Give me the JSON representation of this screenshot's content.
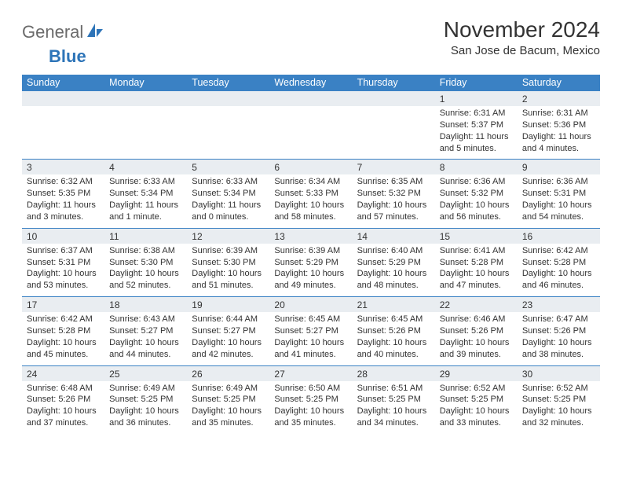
{
  "logo": {
    "text1": "General",
    "text2": "Blue"
  },
  "title": "November 2024",
  "location": "San Jose de Bacum, Mexico",
  "colors": {
    "header_bg": "#3a81c4",
    "header_text": "#ffffff",
    "daynum_bg": "#e9edf1",
    "border": "#3a81c4",
    "body_text": "#333333",
    "logo_gray": "#6b6b6b",
    "logo_blue": "#2d74b8"
  },
  "dow": [
    "Sunday",
    "Monday",
    "Tuesday",
    "Wednesday",
    "Thursday",
    "Friday",
    "Saturday"
  ],
  "weeks": [
    [
      {
        "n": "",
        "lines": []
      },
      {
        "n": "",
        "lines": []
      },
      {
        "n": "",
        "lines": []
      },
      {
        "n": "",
        "lines": []
      },
      {
        "n": "",
        "lines": []
      },
      {
        "n": "1",
        "lines": [
          "Sunrise: 6:31 AM",
          "Sunset: 5:37 PM",
          "Daylight: 11 hours",
          "and 5 minutes."
        ]
      },
      {
        "n": "2",
        "lines": [
          "Sunrise: 6:31 AM",
          "Sunset: 5:36 PM",
          "Daylight: 11 hours",
          "and 4 minutes."
        ]
      }
    ],
    [
      {
        "n": "3",
        "lines": [
          "Sunrise: 6:32 AM",
          "Sunset: 5:35 PM",
          "Daylight: 11 hours",
          "and 3 minutes."
        ]
      },
      {
        "n": "4",
        "lines": [
          "Sunrise: 6:33 AM",
          "Sunset: 5:34 PM",
          "Daylight: 11 hours",
          "and 1 minute."
        ]
      },
      {
        "n": "5",
        "lines": [
          "Sunrise: 6:33 AM",
          "Sunset: 5:34 PM",
          "Daylight: 11 hours",
          "and 0 minutes."
        ]
      },
      {
        "n": "6",
        "lines": [
          "Sunrise: 6:34 AM",
          "Sunset: 5:33 PM",
          "Daylight: 10 hours",
          "and 58 minutes."
        ]
      },
      {
        "n": "7",
        "lines": [
          "Sunrise: 6:35 AM",
          "Sunset: 5:32 PM",
          "Daylight: 10 hours",
          "and 57 minutes."
        ]
      },
      {
        "n": "8",
        "lines": [
          "Sunrise: 6:36 AM",
          "Sunset: 5:32 PM",
          "Daylight: 10 hours",
          "and 56 minutes."
        ]
      },
      {
        "n": "9",
        "lines": [
          "Sunrise: 6:36 AM",
          "Sunset: 5:31 PM",
          "Daylight: 10 hours",
          "and 54 minutes."
        ]
      }
    ],
    [
      {
        "n": "10",
        "lines": [
          "Sunrise: 6:37 AM",
          "Sunset: 5:31 PM",
          "Daylight: 10 hours",
          "and 53 minutes."
        ]
      },
      {
        "n": "11",
        "lines": [
          "Sunrise: 6:38 AM",
          "Sunset: 5:30 PM",
          "Daylight: 10 hours",
          "and 52 minutes."
        ]
      },
      {
        "n": "12",
        "lines": [
          "Sunrise: 6:39 AM",
          "Sunset: 5:30 PM",
          "Daylight: 10 hours",
          "and 51 minutes."
        ]
      },
      {
        "n": "13",
        "lines": [
          "Sunrise: 6:39 AM",
          "Sunset: 5:29 PM",
          "Daylight: 10 hours",
          "and 49 minutes."
        ]
      },
      {
        "n": "14",
        "lines": [
          "Sunrise: 6:40 AM",
          "Sunset: 5:29 PM",
          "Daylight: 10 hours",
          "and 48 minutes."
        ]
      },
      {
        "n": "15",
        "lines": [
          "Sunrise: 6:41 AM",
          "Sunset: 5:28 PM",
          "Daylight: 10 hours",
          "and 47 minutes."
        ]
      },
      {
        "n": "16",
        "lines": [
          "Sunrise: 6:42 AM",
          "Sunset: 5:28 PM",
          "Daylight: 10 hours",
          "and 46 minutes."
        ]
      }
    ],
    [
      {
        "n": "17",
        "lines": [
          "Sunrise: 6:42 AM",
          "Sunset: 5:28 PM",
          "Daylight: 10 hours",
          "and 45 minutes."
        ]
      },
      {
        "n": "18",
        "lines": [
          "Sunrise: 6:43 AM",
          "Sunset: 5:27 PM",
          "Daylight: 10 hours",
          "and 44 minutes."
        ]
      },
      {
        "n": "19",
        "lines": [
          "Sunrise: 6:44 AM",
          "Sunset: 5:27 PM",
          "Daylight: 10 hours",
          "and 42 minutes."
        ]
      },
      {
        "n": "20",
        "lines": [
          "Sunrise: 6:45 AM",
          "Sunset: 5:27 PM",
          "Daylight: 10 hours",
          "and 41 minutes."
        ]
      },
      {
        "n": "21",
        "lines": [
          "Sunrise: 6:45 AM",
          "Sunset: 5:26 PM",
          "Daylight: 10 hours",
          "and 40 minutes."
        ]
      },
      {
        "n": "22",
        "lines": [
          "Sunrise: 6:46 AM",
          "Sunset: 5:26 PM",
          "Daylight: 10 hours",
          "and 39 minutes."
        ]
      },
      {
        "n": "23",
        "lines": [
          "Sunrise: 6:47 AM",
          "Sunset: 5:26 PM",
          "Daylight: 10 hours",
          "and 38 minutes."
        ]
      }
    ],
    [
      {
        "n": "24",
        "lines": [
          "Sunrise: 6:48 AM",
          "Sunset: 5:26 PM",
          "Daylight: 10 hours",
          "and 37 minutes."
        ]
      },
      {
        "n": "25",
        "lines": [
          "Sunrise: 6:49 AM",
          "Sunset: 5:25 PM",
          "Daylight: 10 hours",
          "and 36 minutes."
        ]
      },
      {
        "n": "26",
        "lines": [
          "Sunrise: 6:49 AM",
          "Sunset: 5:25 PM",
          "Daylight: 10 hours",
          "and 35 minutes."
        ]
      },
      {
        "n": "27",
        "lines": [
          "Sunrise: 6:50 AM",
          "Sunset: 5:25 PM",
          "Daylight: 10 hours",
          "and 35 minutes."
        ]
      },
      {
        "n": "28",
        "lines": [
          "Sunrise: 6:51 AM",
          "Sunset: 5:25 PM",
          "Daylight: 10 hours",
          "and 34 minutes."
        ]
      },
      {
        "n": "29",
        "lines": [
          "Sunrise: 6:52 AM",
          "Sunset: 5:25 PM",
          "Daylight: 10 hours",
          "and 33 minutes."
        ]
      },
      {
        "n": "30",
        "lines": [
          "Sunrise: 6:52 AM",
          "Sunset: 5:25 PM",
          "Daylight: 10 hours",
          "and 32 minutes."
        ]
      }
    ]
  ]
}
